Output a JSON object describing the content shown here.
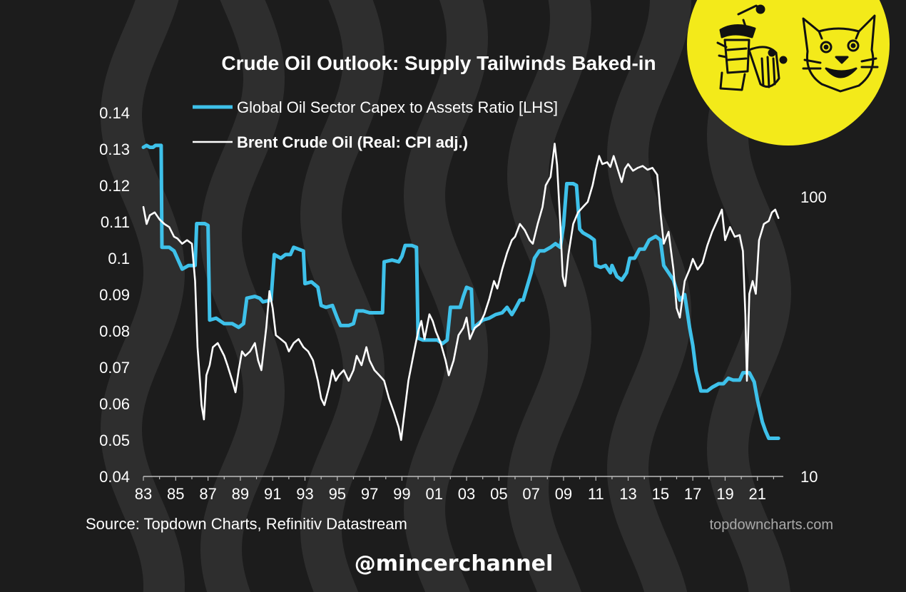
{
  "chart_data": {
    "type": "line",
    "title": "Crude Oil Outlook: Supply Tailwinds Baked-in",
    "x_tick_labels": [
      "83",
      "85",
      "87",
      "89",
      "91",
      "93",
      "95",
      "97",
      "99",
      "01",
      "03",
      "05",
      "07",
      "09",
      "11",
      "13",
      "15",
      "17",
      "19",
      "21"
    ],
    "y_left": {
      "ticks": [
        "0.04",
        "0.05",
        "0.06",
        "0.07",
        "0.08",
        "0.09",
        "0.1",
        "0.11",
        "0.12",
        "0.13",
        "0.14"
      ],
      "ylim": [
        0.04,
        0.14
      ]
    },
    "y_right": {
      "scale": "log",
      "ticks": [
        "10",
        "100"
      ],
      "ylim": [
        10,
        200
      ]
    },
    "xlim": [
      1983,
      2022.6
    ],
    "legend_placement": "top-left",
    "series": [
      {
        "name": "Global Oil Sector Capex to Assets Ratio [LHS]",
        "axis": "left",
        "color": "#3ec1ea",
        "points": [
          [
            1983.0,
            0.1305
          ],
          [
            1983.2,
            0.131
          ],
          [
            1983.4,
            0.1305
          ],
          [
            1983.6,
            0.1305
          ],
          [
            1983.75,
            0.131
          ],
          [
            1984.1,
            0.131
          ],
          [
            1984.15,
            0.103
          ],
          [
            1984.6,
            0.103
          ],
          [
            1984.9,
            0.102
          ],
          [
            1985.2,
            0.099
          ],
          [
            1985.4,
            0.097
          ],
          [
            1985.8,
            0.098
          ],
          [
            1986.2,
            0.098
          ],
          [
            1986.3,
            0.1095
          ],
          [
            1986.8,
            0.1095
          ],
          [
            1987.0,
            0.109
          ],
          [
            1987.1,
            0.083
          ],
          [
            1987.5,
            0.0835
          ],
          [
            1988.0,
            0.082
          ],
          [
            1988.5,
            0.082
          ],
          [
            1988.9,
            0.081
          ],
          [
            1989.2,
            0.082
          ],
          [
            1989.4,
            0.089
          ],
          [
            1989.9,
            0.0895
          ],
          [
            1990.2,
            0.089
          ],
          [
            1990.4,
            0.088
          ],
          [
            1990.9,
            0.0885
          ],
          [
            1991.1,
            0.101
          ],
          [
            1991.5,
            0.1
          ],
          [
            1991.8,
            0.101
          ],
          [
            1992.1,
            0.101
          ],
          [
            1992.3,
            0.103
          ],
          [
            1992.6,
            0.1025
          ],
          [
            1992.9,
            0.102
          ],
          [
            1993.0,
            0.093
          ],
          [
            1993.4,
            0.0935
          ],
          [
            1993.8,
            0.092
          ],
          [
            1994.0,
            0.087
          ],
          [
            1994.3,
            0.0865
          ],
          [
            1994.7,
            0.087
          ],
          [
            1995.0,
            0.0835
          ],
          [
            1995.2,
            0.0815
          ],
          [
            1995.7,
            0.0815
          ],
          [
            1996.0,
            0.082
          ],
          [
            1996.2,
            0.0855
          ],
          [
            1996.6,
            0.0855
          ],
          [
            1997.0,
            0.085
          ],
          [
            1997.3,
            0.085
          ],
          [
            1997.8,
            0.085
          ],
          [
            1997.9,
            0.099
          ],
          [
            1998.4,
            0.0995
          ],
          [
            1998.8,
            0.099
          ],
          [
            1999.0,
            0.1005
          ],
          [
            1999.2,
            0.1035
          ],
          [
            1999.6,
            0.1035
          ],
          [
            1999.9,
            0.103
          ],
          [
            2000.0,
            0.078
          ],
          [
            2000.3,
            0.0775
          ],
          [
            2000.8,
            0.0775
          ],
          [
            2001.2,
            0.0775
          ],
          [
            2001.5,
            0.0765
          ],
          [
            2001.8,
            0.0775
          ],
          [
            2002.0,
            0.0865
          ],
          [
            2002.3,
            0.0865
          ],
          [
            2002.6,
            0.0865
          ],
          [
            2002.8,
            0.0895
          ],
          [
            2003.0,
            0.092
          ],
          [
            2003.3,
            0.0915
          ],
          [
            2003.4,
            0.0805
          ],
          [
            2003.6,
            0.0815
          ],
          [
            2004.0,
            0.083
          ],
          [
            2004.4,
            0.0835
          ],
          [
            2004.8,
            0.0845
          ],
          [
            2005.2,
            0.085
          ],
          [
            2005.5,
            0.0865
          ],
          [
            2005.8,
            0.0845
          ],
          [
            2006.0,
            0.086
          ],
          [
            2006.3,
            0.0885
          ],
          [
            2006.5,
            0.0885
          ],
          [
            2006.8,
            0.093
          ],
          [
            2007.0,
            0.096
          ],
          [
            2007.2,
            0.1
          ],
          [
            2007.5,
            0.102
          ],
          [
            2007.8,
            0.102
          ],
          [
            2008.2,
            0.103
          ],
          [
            2008.5,
            0.104
          ],
          [
            2008.8,
            0.103
          ],
          [
            2009.0,
            0.109
          ],
          [
            2009.2,
            0.1205
          ],
          [
            2009.6,
            0.1205
          ],
          [
            2009.8,
            0.12
          ],
          [
            2010.0,
            0.108
          ],
          [
            2010.2,
            0.107
          ],
          [
            2010.6,
            0.106
          ],
          [
            2010.9,
            0.105
          ],
          [
            2011.0,
            0.098
          ],
          [
            2011.3,
            0.0975
          ],
          [
            2011.6,
            0.098
          ],
          [
            2011.9,
            0.096
          ],
          [
            2012.0,
            0.098
          ],
          [
            2012.3,
            0.095
          ],
          [
            2012.6,
            0.094
          ],
          [
            2012.9,
            0.096
          ],
          [
            2013.1,
            0.1
          ],
          [
            2013.4,
            0.1
          ],
          [
            2013.7,
            0.1025
          ],
          [
            2014.0,
            0.1025
          ],
          [
            2014.3,
            0.105
          ],
          [
            2014.7,
            0.106
          ],
          [
            2015.0,
            0.105
          ],
          [
            2015.2,
            0.098
          ],
          [
            2015.5,
            0.096
          ],
          [
            2015.8,
            0.094
          ],
          [
            2016.0,
            0.091
          ],
          [
            2016.2,
            0.0885
          ],
          [
            2016.5,
            0.09
          ],
          [
            2016.8,
            0.081
          ],
          [
            2017.0,
            0.076
          ],
          [
            2017.2,
            0.069
          ],
          [
            2017.5,
            0.0635
          ],
          [
            2017.9,
            0.0635
          ],
          [
            2018.2,
            0.0645
          ],
          [
            2018.6,
            0.0655
          ],
          [
            2018.9,
            0.0655
          ],
          [
            2019.2,
            0.067
          ],
          [
            2019.5,
            0.0665
          ],
          [
            2019.9,
            0.0665
          ],
          [
            2020.1,
            0.0685
          ],
          [
            2020.5,
            0.0685
          ],
          [
            2020.8,
            0.066
          ],
          [
            2021.0,
            0.061
          ],
          [
            2021.3,
            0.055
          ],
          [
            2021.5,
            0.0525
          ],
          [
            2021.7,
            0.0505
          ],
          [
            2022.0,
            0.0505
          ],
          [
            2022.3,
            0.0505
          ]
        ]
      },
      {
        "name": "Brent Crude Oil (Real: CPI adj.)",
        "axis": "right",
        "color": "#ffffff",
        "points": [
          [
            1983.0,
            92
          ],
          [
            1983.2,
            80
          ],
          [
            1983.4,
            86
          ],
          [
            1983.7,
            88
          ],
          [
            1984.0,
            83
          ],
          [
            1984.3,
            80
          ],
          [
            1984.6,
            78
          ],
          [
            1984.9,
            72
          ],
          [
            1985.1,
            71
          ],
          [
            1985.4,
            68
          ],
          [
            1985.7,
            70
          ],
          [
            1986.0,
            68
          ],
          [
            1986.2,
            50
          ],
          [
            1986.35,
            29
          ],
          [
            1986.5,
            22
          ],
          [
            1986.6,
            18
          ],
          [
            1986.75,
            16
          ],
          [
            1986.9,
            23
          ],
          [
            1987.1,
            25
          ],
          [
            1987.3,
            29
          ],
          [
            1987.6,
            30
          ],
          [
            1988.0,
            27
          ],
          [
            1988.2,
            25
          ],
          [
            1988.5,
            22
          ],
          [
            1988.7,
            20
          ],
          [
            1988.9,
            24
          ],
          [
            1989.1,
            28
          ],
          [
            1989.3,
            27
          ],
          [
            1989.6,
            28
          ],
          [
            1989.9,
            30
          ],
          [
            1990.1,
            26
          ],
          [
            1990.3,
            24
          ],
          [
            1990.6,
            34
          ],
          [
            1990.8,
            46
          ],
          [
            1991.0,
            40
          ],
          [
            1991.2,
            32
          ],
          [
            1991.5,
            31
          ],
          [
            1991.8,
            30
          ],
          [
            1992.0,
            28
          ],
          [
            1992.3,
            30
          ],
          [
            1992.6,
            31
          ],
          [
            1992.9,
            29
          ],
          [
            1993.2,
            28
          ],
          [
            1993.5,
            26
          ],
          [
            1993.8,
            22
          ],
          [
            1994.0,
            19
          ],
          [
            1994.2,
            18
          ],
          [
            1994.5,
            21
          ],
          [
            1994.7,
            24
          ],
          [
            1994.9,
            22
          ],
          [
            1995.1,
            23
          ],
          [
            1995.4,
            24
          ],
          [
            1995.7,
            22
          ],
          [
            1996.0,
            24
          ],
          [
            1996.2,
            27
          ],
          [
            1996.5,
            25
          ],
          [
            1996.8,
            29
          ],
          [
            1997.0,
            26
          ],
          [
            1997.3,
            24
          ],
          [
            1997.6,
            23
          ],
          [
            1997.9,
            22
          ],
          [
            1998.2,
            19
          ],
          [
            1998.5,
            17
          ],
          [
            1998.8,
            15
          ],
          [
            1998.95,
            13.5
          ],
          [
            1999.1,
            16
          ],
          [
            1999.4,
            22
          ],
          [
            1999.7,
            27
          ],
          [
            2000.0,
            33
          ],
          [
            2000.2,
            36
          ],
          [
            2000.4,
            31
          ],
          [
            2000.7,
            38
          ],
          [
            2000.9,
            36
          ],
          [
            2001.1,
            33
          ],
          [
            2001.4,
            30
          ],
          [
            2001.7,
            26
          ],
          [
            2001.9,
            23
          ],
          [
            2002.2,
            26
          ],
          [
            2002.5,
            32
          ],
          [
            2002.8,
            34
          ],
          [
            2003.0,
            37
          ],
          [
            2003.2,
            31
          ],
          [
            2003.5,
            34
          ],
          [
            2003.8,
            35
          ],
          [
            2004.1,
            38
          ],
          [
            2004.4,
            43
          ],
          [
            2004.7,
            50
          ],
          [
            2004.9,
            47
          ],
          [
            2005.2,
            55
          ],
          [
            2005.5,
            63
          ],
          [
            2005.8,
            70
          ],
          [
            2006.0,
            72
          ],
          [
            2006.3,
            80
          ],
          [
            2006.6,
            76
          ],
          [
            2006.9,
            70
          ],
          [
            2007.1,
            68
          ],
          [
            2007.4,
            80
          ],
          [
            2007.7,
            92
          ],
          [
            2007.9,
            110
          ],
          [
            2008.2,
            118
          ],
          [
            2008.45,
            155
          ],
          [
            2008.6,
            130
          ],
          [
            2008.8,
            80
          ],
          [
            2008.95,
            52
          ],
          [
            2009.1,
            48
          ],
          [
            2009.3,
            62
          ],
          [
            2009.6,
            80
          ],
          [
            2009.9,
            88
          ],
          [
            2010.2,
            92
          ],
          [
            2010.5,
            96
          ],
          [
            2010.8,
            110
          ],
          [
            2011.0,
            125
          ],
          [
            2011.2,
            140
          ],
          [
            2011.4,
            131
          ],
          [
            2011.7,
            133
          ],
          [
            2011.9,
            128
          ],
          [
            2012.1,
            140
          ],
          [
            2012.4,
            123
          ],
          [
            2012.6,
            113
          ],
          [
            2012.8,
            126
          ],
          [
            2013.0,
            131
          ],
          [
            2013.3,
            124
          ],
          [
            2013.6,
            127
          ],
          [
            2013.9,
            129
          ],
          [
            2014.2,
            125
          ],
          [
            2014.5,
            127
          ],
          [
            2014.8,
            120
          ],
          [
            2015.0,
            88
          ],
          [
            2015.2,
            68
          ],
          [
            2015.5,
            75
          ],
          [
            2015.8,
            55
          ],
          [
            2016.0,
            40
          ],
          [
            2016.2,
            37
          ],
          [
            2016.5,
            50
          ],
          [
            2016.8,
            55
          ],
          [
            2017.0,
            60
          ],
          [
            2017.3,
            55
          ],
          [
            2017.6,
            58
          ],
          [
            2017.9,
            67
          ],
          [
            2018.2,
            75
          ],
          [
            2018.5,
            82
          ],
          [
            2018.8,
            90
          ],
          [
            2019.0,
            70
          ],
          [
            2019.3,
            78
          ],
          [
            2019.6,
            72
          ],
          [
            2019.9,
            73
          ],
          [
            2020.1,
            64
          ],
          [
            2020.25,
            38
          ],
          [
            2020.35,
            22
          ],
          [
            2020.5,
            45
          ],
          [
            2020.7,
            50
          ],
          [
            2020.9,
            45
          ],
          [
            2021.1,
            70
          ],
          [
            2021.4,
            80
          ],
          [
            2021.7,
            82
          ],
          [
            2021.9,
            88
          ],
          [
            2022.1,
            90
          ],
          [
            2022.3,
            84
          ]
        ]
      }
    ]
  },
  "source_text": "Source: Topdown Charts, Refinitiv Datastream",
  "website_text": "topdowncharts.com",
  "handle_text": "@mincerchannel",
  "colors": {
    "background": "#1c1c1c",
    "wave": "#2e2e2e",
    "capex_line": "#3ec1ea",
    "brent_line": "#ffffff",
    "logo_bg": "#f3ea1a"
  }
}
